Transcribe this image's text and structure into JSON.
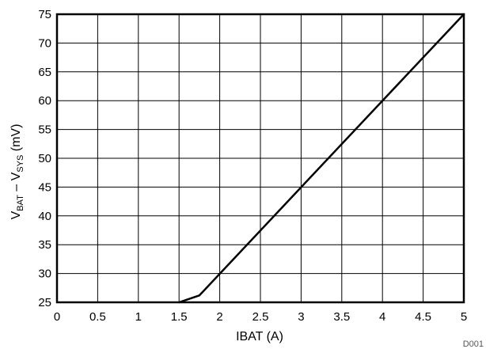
{
  "chart_data": {
    "type": "line",
    "title": "",
    "xlabel": "IBAT (A)",
    "ylabel": {
      "v1": "V",
      "sub1": "BAT",
      "dash": " – ",
      "v2": "V",
      "sub2": "SYS",
      "unit": " (mV)"
    },
    "xlim": [
      0,
      5
    ],
    "ylim": [
      25,
      75
    ],
    "xticks": [
      "0",
      "0.5",
      "1",
      "1.5",
      "2",
      "2.5",
      "3",
      "3.5",
      "4",
      "4.5",
      "5"
    ],
    "yticks": [
      "25",
      "30",
      "35",
      "40",
      "45",
      "50",
      "55",
      "60",
      "65",
      "70",
      "75"
    ],
    "grid": true,
    "legend": "none",
    "series": [
      {
        "color": "#000000",
        "x": [
          1.5,
          1.75,
          5.0
        ],
        "y": [
          25.0,
          26.2,
          75.0
        ]
      }
    ],
    "annotation": "D001"
  }
}
